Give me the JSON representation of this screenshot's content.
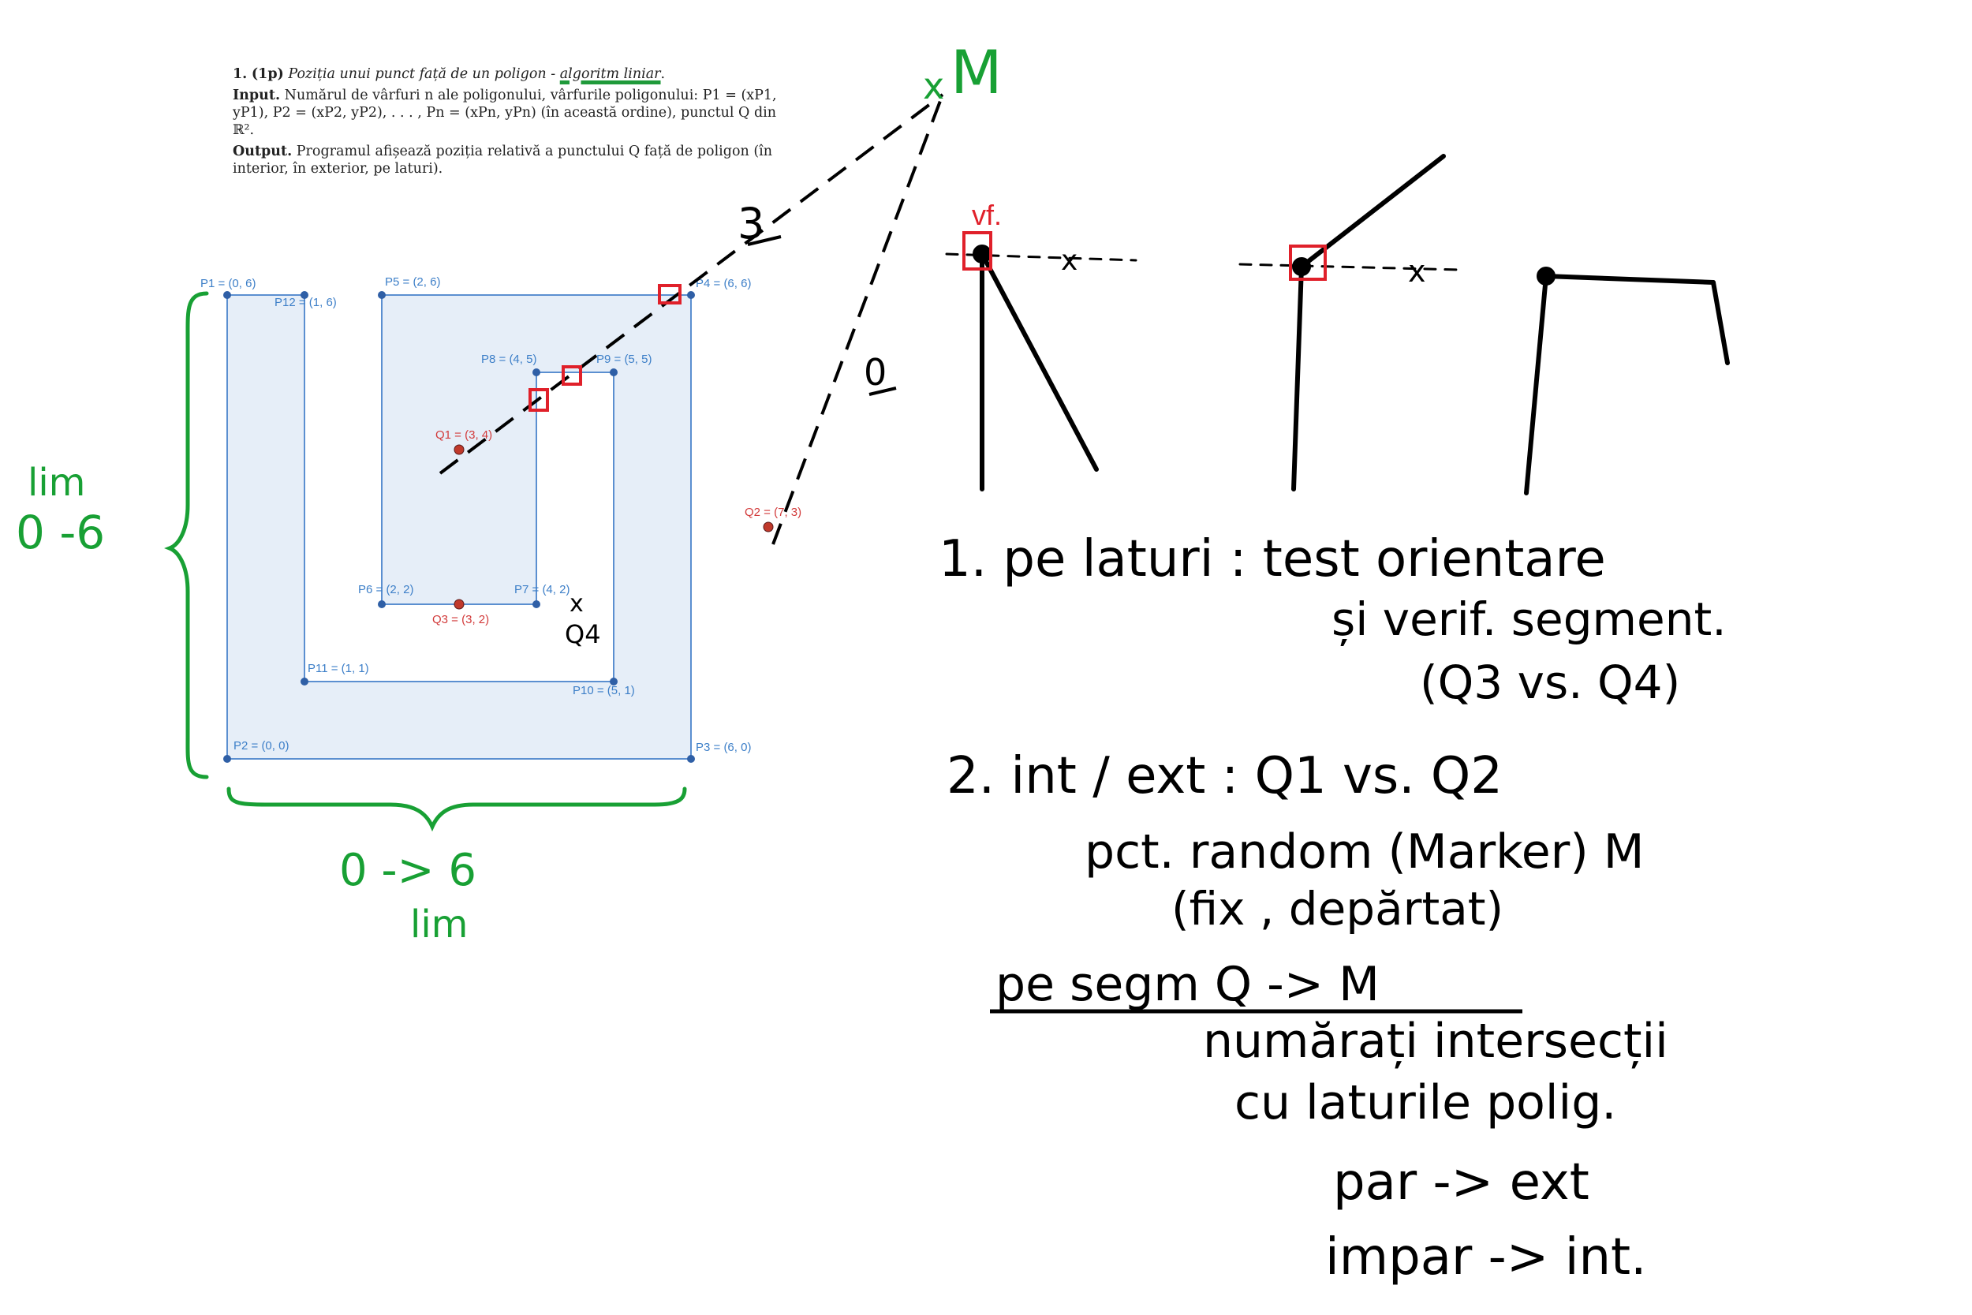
{
  "problem": {
    "number": "1.",
    "points": "(1p)",
    "title_prefix": "Poziția unui punct față de un poligon - ",
    "title_highlight": "algoritm liniar",
    "title_suffix": ".",
    "input_label": "Input.",
    "input_text": "Numărul de vârfuri n ale poligonului, vârfurile poligonului: P1 = (xP1, yP1), P2 = (xP2, yP2), . . . , Pn = (xPn, yPn) (în această ordine), punctul Q din ℝ².",
    "output_label": "Output.",
    "output_text": "Programul afișează poziția relativă a punctului Q față de poligon (în interior, în exterior, pe laturi)."
  },
  "polygon": {
    "vertices": [
      {
        "name": "P1",
        "label": "P1 = (0, 6)",
        "x": 0,
        "y": 6
      },
      {
        "name": "P2",
        "label": "P2 = (0, 0)",
        "x": 0,
        "y": 0
      },
      {
        "name": "P3",
        "label": "P3 = (6, 0)",
        "x": 6,
        "y": 0
      },
      {
        "name": "P4",
        "label": "P4 = (6, 6)",
        "x": 6,
        "y": 6
      },
      {
        "name": "P5",
        "label": "P5 = (2, 6)",
        "x": 2,
        "y": 6
      },
      {
        "name": "P6",
        "label": "P6 = (2, 2)",
        "x": 2,
        "y": 2
      },
      {
        "name": "P7",
        "label": "P7 = (4, 2)",
        "x": 4,
        "y": 2
      },
      {
        "name": "P8",
        "label": "P8 = (4, 5)",
        "x": 4,
        "y": 5
      },
      {
        "name": "P9",
        "label": "P9 = (5, 5)",
        "x": 5,
        "y": 5
      },
      {
        "name": "P10",
        "label": "P10 = (5, 1)",
        "x": 5,
        "y": 1
      },
      {
        "name": "P11",
        "label": "P11 = (1, 1)",
        "x": 1,
        "y": 1
      },
      {
        "name": "P12",
        "label": "P12 = (1, 6)",
        "x": 1,
        "y": 6
      }
    ],
    "fill_color": "#e6eef8",
    "edge_color": "#5b8fd0",
    "vertex_color": "#2f5fa6"
  },
  "query_points": [
    {
      "name": "Q1",
      "label": "Q1 = (3, 4)",
      "x": 3,
      "y": 4
    },
    {
      "name": "Q2",
      "label": "Q2 = (7, 3)",
      "x": 7,
      "y": 3
    },
    {
      "name": "Q3",
      "label": "Q3 = (3, 2)",
      "x": 3,
      "y": 2
    }
  ],
  "query_color": "#c0392b",
  "notes": {
    "q4_mark": "x",
    "q4_label": "Q4",
    "marker_mark": "x",
    "marker_label": "M",
    "count_q1": "3",
    "count_q2": "0",
    "vf_label": "vf.",
    "y_range": "0 -6",
    "y_range_word": "lim",
    "x_range": "0 -> 6",
    "x_range_word": "lim",
    "step1_line1": "1. pe laturi : test orientare",
    "step1_line2": "și verif. segment.",
    "step1_line3": "(Q3 vs. Q4)",
    "step2_line1": "2. int / ext : Q1 vs. Q2",
    "step2_line2": "pct. random (Marker) M",
    "step2_line3": "(fix , depărtat)",
    "step2_line4": "pe segm Q -> M",
    "step2_line5": "numărați intersecții",
    "step2_line6": "cu laturile polig.",
    "rule_even": "par -> ext",
    "rule_odd": "impar -> int."
  },
  "colors": {
    "green": "#18a034",
    "red": "#e0202a",
    "ink": "#000000"
  }
}
